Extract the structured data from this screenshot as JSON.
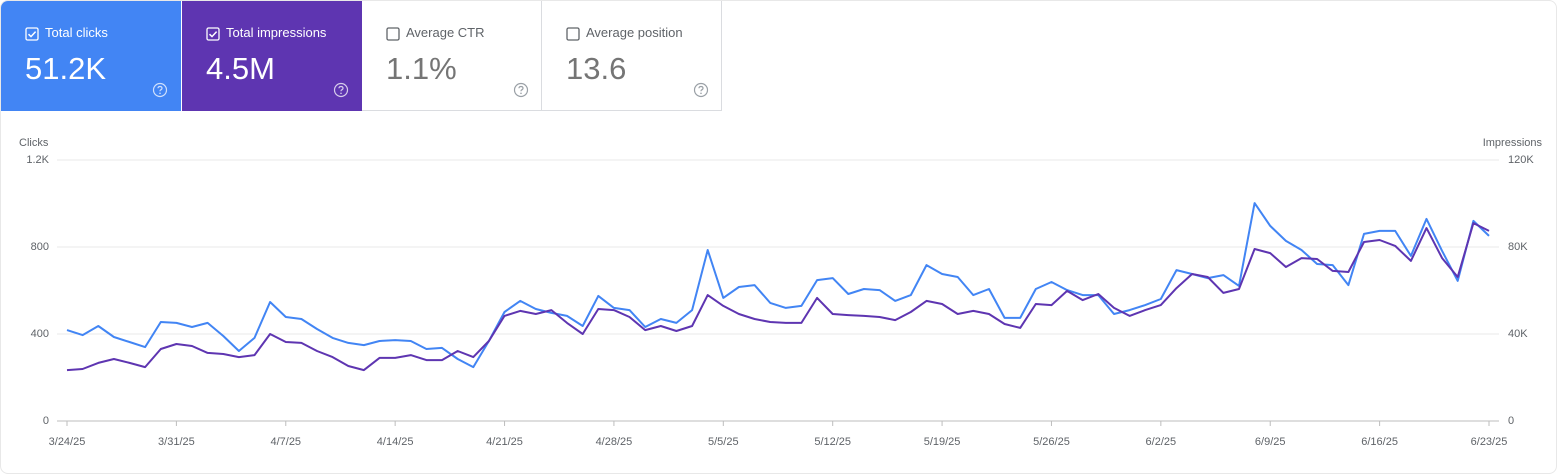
{
  "metrics": [
    {
      "label": "Total clicks",
      "value": "51.2K",
      "checked": true,
      "color": "#4285f4"
    },
    {
      "label": "Total impressions",
      "value": "4.5M",
      "checked": true,
      "color": "#5e35b1"
    },
    {
      "label": "Average CTR",
      "value": "1.1%",
      "checked": false,
      "color": "#ffffff"
    },
    {
      "label": "Average position",
      "value": "13.6",
      "checked": false,
      "color": "#ffffff"
    }
  ],
  "chart_data": {
    "type": "line",
    "y_label": "Clicks",
    "y2_label": "Impressions",
    "categories": [
      "3/24/25",
      null,
      null,
      null,
      null,
      null,
      null,
      "3/31/25",
      null,
      null,
      null,
      null,
      null,
      null,
      "4/7/25",
      null,
      null,
      null,
      null,
      null,
      null,
      "4/14/25",
      null,
      null,
      null,
      null,
      null,
      null,
      "4/21/25",
      null,
      null,
      null,
      null,
      null,
      null,
      "4/28/25",
      null,
      null,
      null,
      null,
      null,
      null,
      "5/5/25",
      null,
      null,
      null,
      null,
      null,
      null,
      "5/12/25",
      null,
      null,
      null,
      null,
      null,
      null,
      "5/19/25",
      null,
      null,
      null,
      null,
      null,
      null,
      "5/26/25",
      null,
      null,
      null,
      null,
      null,
      null,
      "6/2/25",
      null,
      null,
      null,
      null,
      null,
      null,
      "6/9/25",
      null,
      null,
      null,
      null,
      null,
      null,
      "6/16/25",
      null,
      null,
      null,
      null,
      null,
      null,
      "6/23/25"
    ],
    "series": [
      {
        "name": "Total clicks",
        "color": "#4285f4",
        "values": [
          418,
          395,
          437,
          386,
          363,
          340,
          455,
          451,
          432,
          451,
          391,
          322,
          382,
          547,
          478,
          469,
          423,
          382,
          359,
          349,
          368,
          372,
          368,
          331,
          336,
          285,
          248,
          368,
          501,
          552,
          515,
          497,
          483,
          437,
          575,
          520,
          510,
          432,
          469,
          451,
          510,
          786,
          566,
          616,
          625,
          543,
          520,
          529,
          648,
          657,
          584,
          607,
          602,
          552,
          579,
          717,
          676,
          662,
          579,
          607,
          474,
          474,
          607,
          639,
          602,
          579,
          579,
          492,
          510,
          533,
          561,
          694,
          676,
          657,
          671,
          621,
          1002,
          897,
          828,
          786,
          722,
          717,
          625,
          860,
          874,
          874,
          759,
          929,
          782,
          644,
          920,
          851
        ]
      },
      {
        "name": "Total impressions",
        "color": "#5e35b1",
        "axis": "y2",
        "values": [
          23400,
          23900,
          26700,
          28500,
          26700,
          24800,
          33100,
          35400,
          34500,
          31300,
          30800,
          29400,
          30300,
          40000,
          36300,
          35900,
          32200,
          29400,
          25300,
          23400,
          29000,
          29000,
          30300,
          28000,
          28000,
          32200,
          29400,
          36800,
          48300,
          50600,
          49200,
          51000,
          45100,
          40000,
          51500,
          51000,
          47800,
          41800,
          43700,
          41400,
          43700,
          57900,
          52900,
          49200,
          46900,
          45500,
          45100,
          45100,
          56600,
          49200,
          48700,
          48300,
          47800,
          46400,
          50100,
          55200,
          53800,
          49200,
          50600,
          49200,
          44600,
          42800,
          53800,
          53300,
          59800,
          55600,
          58400,
          52000,
          48300,
          51000,
          53300,
          61100,
          67600,
          66200,
          58900,
          60700,
          79100,
          77200,
          70800,
          74900,
          74500,
          69000,
          68500,
          82300,
          83200,
          80500,
          73600,
          88700,
          74900,
          66200,
          91000,
          87400
        ]
      }
    ],
    "ylim": [
      0,
      1200
    ],
    "yticks": [
      0,
      400,
      800,
      {
        "value": 1200,
        "label": "1.2K"
      }
    ],
    "y2lim": [
      0,
      120000
    ],
    "y2ticks": [
      0,
      {
        "value": 40000,
        "label": "40K"
      },
      {
        "value": 80000,
        "label": "80K"
      },
      {
        "value": 120000,
        "label": "120K"
      }
    ],
    "grid": true
  }
}
